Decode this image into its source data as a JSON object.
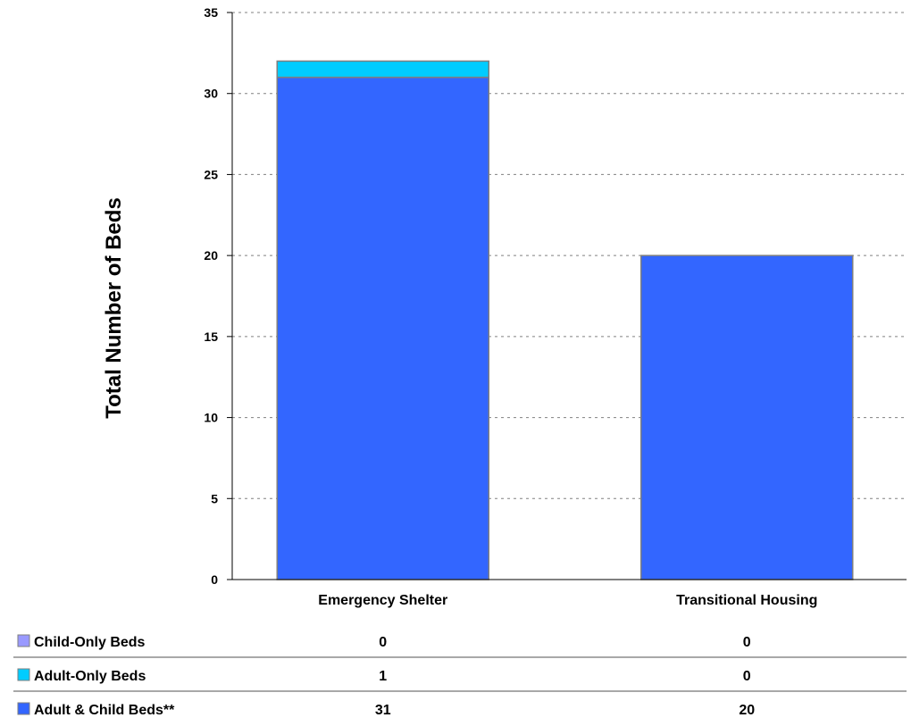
{
  "chart_data": {
    "type": "bar",
    "stacked": true,
    "ylabel": "Total Number of Beds",
    "xlabel": "",
    "ylim": [
      0,
      35
    ],
    "yticks": [
      0,
      5,
      10,
      15,
      20,
      25,
      30,
      35
    ],
    "grid": "horizontal-dotted",
    "categories": [
      "Emergency Shelter",
      "Transitional Housing"
    ],
    "series": [
      {
        "name": "Adult & Child Beds**",
        "color": "#3366ff",
        "values": [
          31,
          20
        ]
      },
      {
        "name": "Adult-Only Beds",
        "color": "#00ccff",
        "values": [
          1,
          0
        ]
      },
      {
        "name": "Child-Only Beds",
        "color": "#9999ff",
        "values": [
          0,
          0
        ]
      }
    ],
    "table_rows": [
      {
        "label": "Child-Only Beds",
        "color": "#9999ff",
        "values": [
          "0",
          "0"
        ]
      },
      {
        "label": "Adult-Only Beds",
        "color": "#00ccff",
        "values": [
          "1",
          "0"
        ]
      },
      {
        "label": "Adult & Child Beds**",
        "color": "#3366ff",
        "values": [
          "31",
          "20"
        ]
      }
    ]
  }
}
